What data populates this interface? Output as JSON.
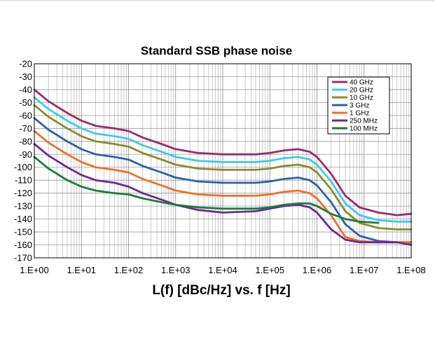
{
  "chart_data": {
    "type": "line",
    "title": "Standard SSB phase noise",
    "xlabel": "L(f) [dBc/Hz] vs. f [Hz]",
    "ylabel": "",
    "x_scale": "log",
    "xlim": [
      1,
      100000000
    ],
    "ylim": [
      -170,
      -20
    ],
    "grid": true,
    "legend_position": "top-right",
    "x_ticks": [
      "1.E+00",
      "1.E+01",
      "1.E+02",
      "1.E+03",
      "1.E+04",
      "1.E+05",
      "1.E+06",
      "1.E+07",
      "1.E+08"
    ],
    "y_ticks": [
      "-20",
      "-30",
      "-40",
      "-50",
      "-60",
      "-70",
      "-80",
      "-90",
      "-100",
      "-110",
      "-120",
      "-130",
      "-140",
      "-150",
      "-160",
      "-170"
    ],
    "series": [
      {
        "name": "40 GHz",
        "color": "#9b2a6b",
        "points": [
          [
            1,
            -40
          ],
          [
            2,
            -49
          ],
          [
            5,
            -58
          ],
          [
            10,
            -64
          ],
          [
            20,
            -68
          ],
          [
            50,
            -70
          ],
          [
            100,
            -72
          ],
          [
            200,
            -77
          ],
          [
            500,
            -82
          ],
          [
            1000,
            -86
          ],
          [
            3000,
            -89
          ],
          [
            10000,
            -90
          ],
          [
            50000,
            -90
          ],
          [
            100000,
            -89
          ],
          [
            200000,
            -87
          ],
          [
            400000,
            -86
          ],
          [
            700000,
            -88
          ],
          [
            1000000,
            -92
          ],
          [
            2000000,
            -105
          ],
          [
            4000000,
            -122
          ],
          [
            8000000,
            -131
          ],
          [
            20000000,
            -135
          ],
          [
            50000000,
            -137
          ],
          [
            100000000,
            -136
          ]
        ]
      },
      {
        "name": "20 GHz",
        "color": "#3ecbe8",
        "points": [
          [
            1,
            -46
          ],
          [
            2,
            -55
          ],
          [
            5,
            -64
          ],
          [
            10,
            -70
          ],
          [
            20,
            -74
          ],
          [
            50,
            -76
          ],
          [
            100,
            -78
          ],
          [
            200,
            -83
          ],
          [
            500,
            -88
          ],
          [
            1000,
            -92
          ],
          [
            3000,
            -95
          ],
          [
            10000,
            -96
          ],
          [
            50000,
            -96
          ],
          [
            100000,
            -95
          ],
          [
            200000,
            -93
          ],
          [
            400000,
            -92
          ],
          [
            700000,
            -94
          ],
          [
            1000000,
            -98
          ],
          [
            2000000,
            -111
          ],
          [
            4000000,
            -128
          ],
          [
            8000000,
            -137
          ],
          [
            20000000,
            -141
          ],
          [
            50000000,
            -142
          ],
          [
            100000000,
            -142
          ]
        ]
      },
      {
        "name": "10 GHz",
        "color": "#8b8b2c",
        "points": [
          [
            1,
            -52
          ],
          [
            2,
            -61
          ],
          [
            5,
            -70
          ],
          [
            10,
            -76
          ],
          [
            20,
            -80
          ],
          [
            50,
            -82
          ],
          [
            100,
            -84
          ],
          [
            200,
            -89
          ],
          [
            500,
            -94
          ],
          [
            1000,
            -98
          ],
          [
            3000,
            -101
          ],
          [
            10000,
            -102
          ],
          [
            50000,
            -102
          ],
          [
            100000,
            -101
          ],
          [
            200000,
            -99
          ],
          [
            400000,
            -98
          ],
          [
            700000,
            -100
          ],
          [
            1000000,
            -104
          ],
          [
            2000000,
            -117
          ],
          [
            4000000,
            -134
          ],
          [
            8000000,
            -143
          ],
          [
            20000000,
            -147
          ],
          [
            50000000,
            -148
          ],
          [
            100000000,
            -148
          ]
        ]
      },
      {
        "name": "3 GHz",
        "color": "#2f5fae",
        "points": [
          [
            1,
            -62
          ],
          [
            2,
            -71
          ],
          [
            5,
            -80
          ],
          [
            10,
            -86
          ],
          [
            20,
            -90
          ],
          [
            50,
            -92
          ],
          [
            100,
            -94
          ],
          [
            200,
            -99
          ],
          [
            500,
            -104
          ],
          [
            1000,
            -108
          ],
          [
            3000,
            -111
          ],
          [
            10000,
            -112
          ],
          [
            50000,
            -112
          ],
          [
            100000,
            -111
          ],
          [
            200000,
            -109
          ],
          [
            400000,
            -108
          ],
          [
            700000,
            -110
          ],
          [
            1000000,
            -114
          ],
          [
            2000000,
            -127
          ],
          [
            4000000,
            -144
          ],
          [
            8000000,
            -153
          ],
          [
            20000000,
            -157
          ],
          [
            50000000,
            -158
          ],
          [
            100000000,
            -158
          ]
        ]
      },
      {
        "name": "1 GHz",
        "color": "#ef7025",
        "points": [
          [
            1,
            -72
          ],
          [
            2,
            -81
          ],
          [
            5,
            -90
          ],
          [
            10,
            -96
          ],
          [
            20,
            -100
          ],
          [
            50,
            -102
          ],
          [
            100,
            -104
          ],
          [
            200,
            -109
          ],
          [
            500,
            -114
          ],
          [
            1000,
            -118
          ],
          [
            3000,
            -121
          ],
          [
            10000,
            -122
          ],
          [
            50000,
            -122
          ],
          [
            100000,
            -121
          ],
          [
            200000,
            -119
          ],
          [
            400000,
            -118
          ],
          [
            700000,
            -120
          ],
          [
            1000000,
            -124
          ],
          [
            2000000,
            -137
          ],
          [
            4000000,
            -154
          ],
          [
            8000000,
            -157
          ],
          [
            20000000,
            -158
          ],
          [
            50000000,
            -158
          ],
          [
            100000000,
            -158
          ]
        ]
      },
      {
        "name": "250 MHz",
        "color": "#6c2a8c",
        "points": [
          [
            1,
            -82
          ],
          [
            2,
            -91
          ],
          [
            5,
            -100
          ],
          [
            10,
            -106
          ],
          [
            20,
            -110
          ],
          [
            50,
            -112
          ],
          [
            100,
            -115
          ],
          [
            200,
            -120
          ],
          [
            500,
            -125
          ],
          [
            1000,
            -129
          ],
          [
            3000,
            -133
          ],
          [
            10000,
            -135
          ],
          [
            50000,
            -134
          ],
          [
            100000,
            -132
          ],
          [
            200000,
            -130
          ],
          [
            400000,
            -129
          ],
          [
            700000,
            -131
          ],
          [
            1000000,
            -135
          ],
          [
            2000000,
            -148
          ],
          [
            4000000,
            -156
          ],
          [
            8000000,
            -158
          ],
          [
            20000000,
            -158
          ],
          [
            50000000,
            -158
          ],
          [
            100000000,
            -160
          ]
        ]
      },
      {
        "name": "100 MHz",
        "color": "#1f7a3a",
        "points": [
          [
            1,
            -92
          ],
          [
            2,
            -101
          ],
          [
            5,
            -110
          ],
          [
            10,
            -115
          ],
          [
            20,
            -118
          ],
          [
            50,
            -120
          ],
          [
            100,
            -121
          ],
          [
            200,
            -124
          ],
          [
            500,
            -127
          ],
          [
            1000,
            -129
          ],
          [
            3000,
            -131
          ],
          [
            10000,
            -132
          ],
          [
            50000,
            -132
          ],
          [
            100000,
            -131
          ],
          [
            200000,
            -129
          ],
          [
            400000,
            -128
          ],
          [
            700000,
            -128
          ],
          [
            1000000,
            -130
          ],
          [
            2000000,
            -136
          ],
          [
            4000000,
            -140
          ],
          [
            8000000,
            -142
          ],
          [
            20000000,
            -143
          ]
        ]
      }
    ]
  }
}
